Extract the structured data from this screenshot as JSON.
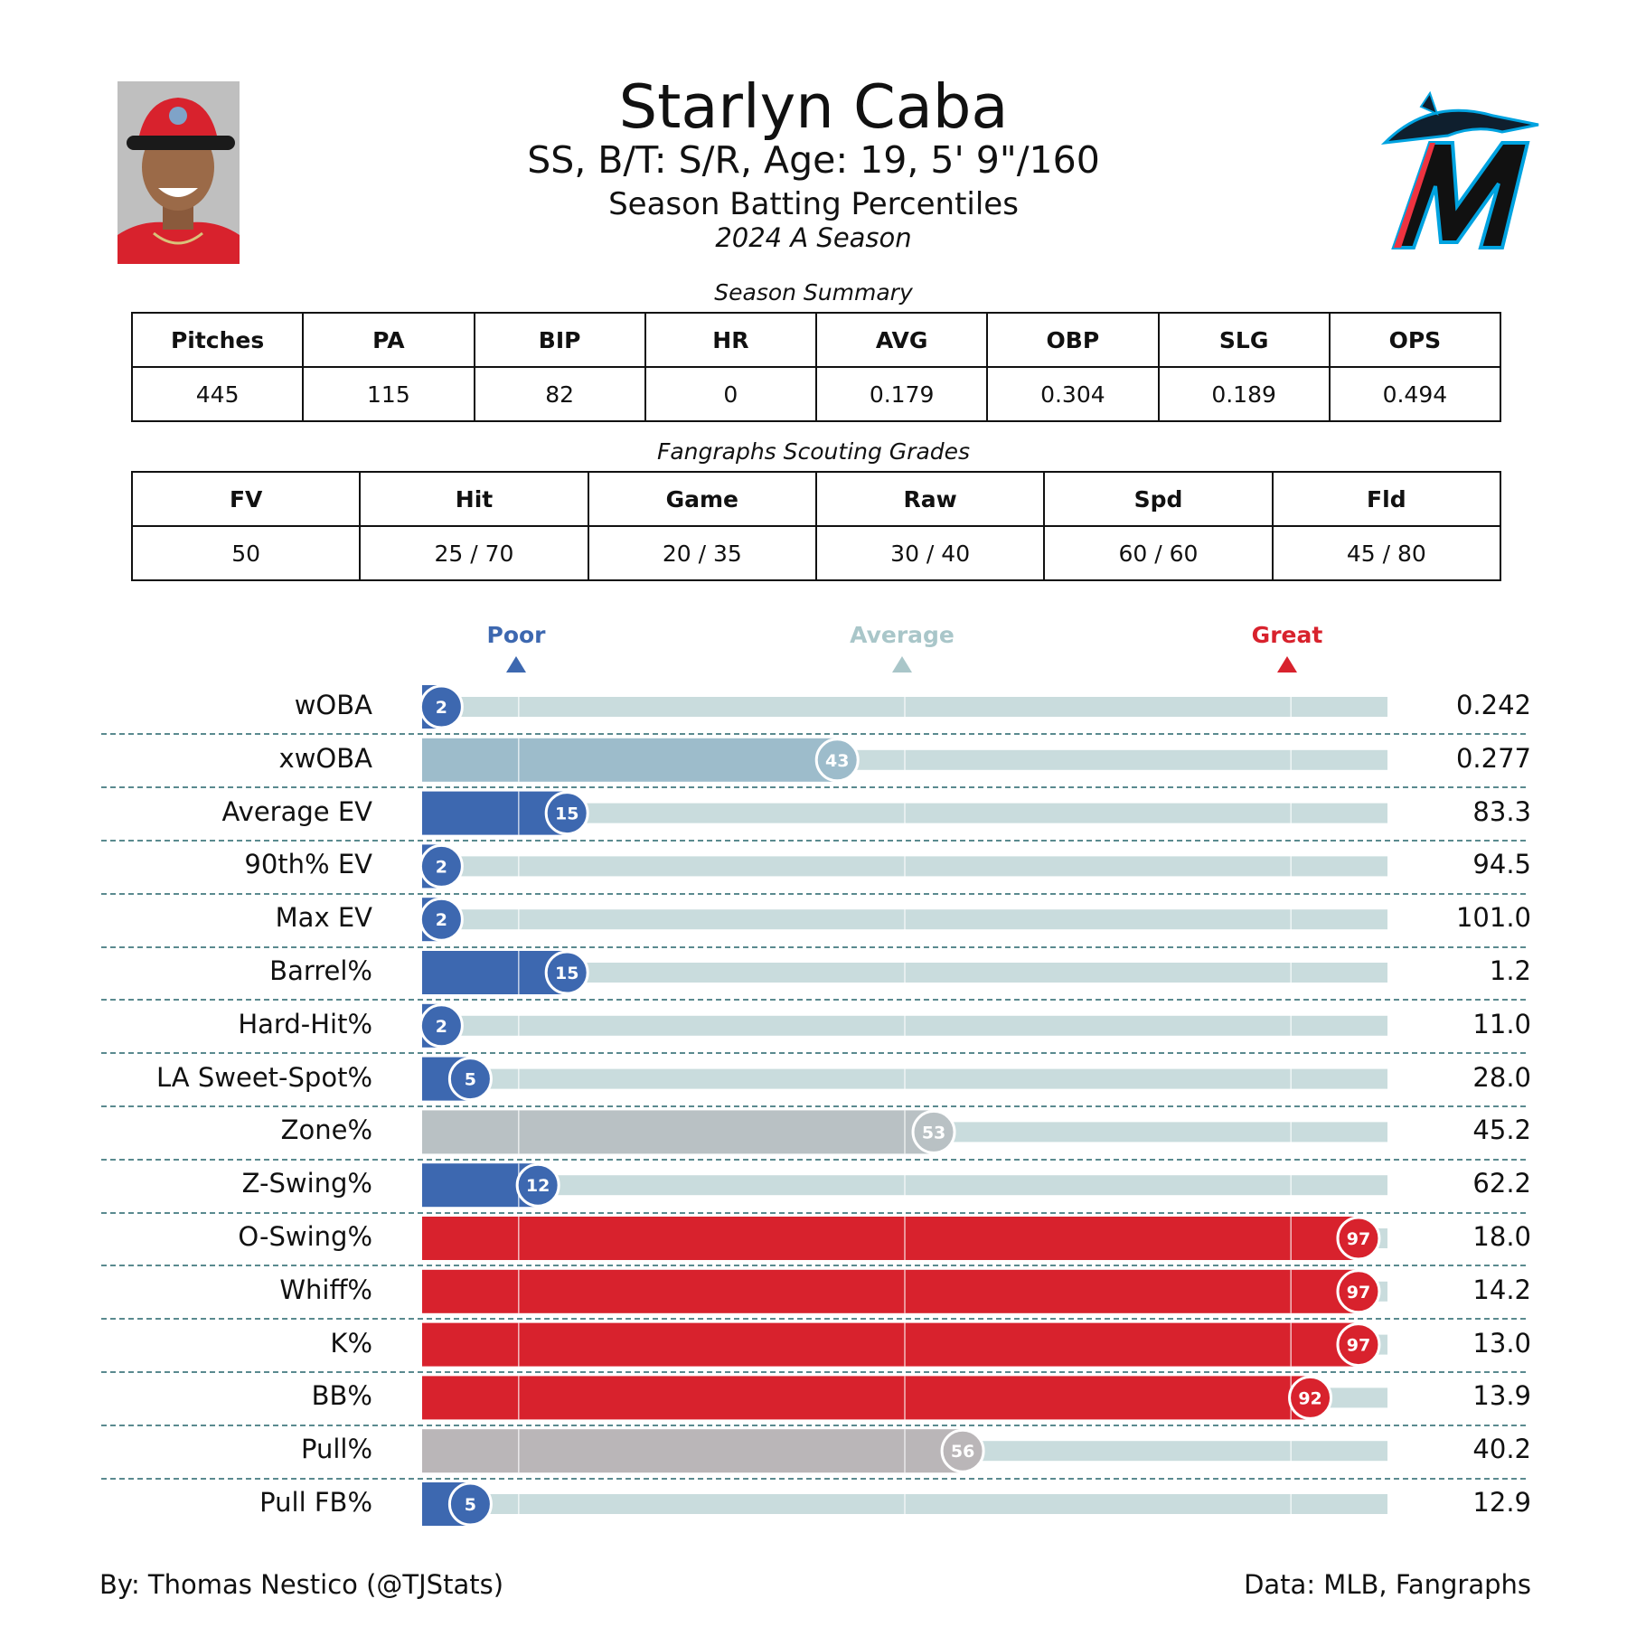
{
  "header": {
    "name": "Starlyn Caba",
    "player_line": "SS, B/T: S/R, Age: 19, 5' 9\"/160",
    "report_title": "Season Batting Percentiles",
    "season": "2024 A Season"
  },
  "summary": {
    "caption": "Season Summary",
    "columns": [
      "Pitches",
      "PA",
      "BIP",
      "HR",
      "AVG",
      "OBP",
      "SLG",
      "OPS"
    ],
    "values": [
      "445",
      "115",
      "82",
      "0",
      "0.179",
      "0.304",
      "0.189",
      "0.494"
    ]
  },
  "grades": {
    "caption": "Fangraphs Scouting Grades",
    "columns": [
      "FV",
      "Hit",
      "Game",
      "Raw",
      "Spd",
      "Fld"
    ],
    "values": [
      "50",
      "25 / 70",
      "20 / 35",
      "30 / 40",
      "60 / 60",
      "45 / 80"
    ]
  },
  "scale": {
    "poor": "Poor",
    "average": "Average",
    "great": "Great",
    "poor_color": "#3d68b0",
    "average_color": "#a9c6c9",
    "great_color": "#d8222d"
  },
  "chart_data": {
    "type": "bar",
    "orientation": "horizontal",
    "xlim": [
      0,
      100
    ],
    "reference_percentiles": [
      10,
      50,
      90
    ],
    "categories": [
      "wOBA",
      "xwOBA",
      "Average EV",
      "90th% EV",
      "Max EV",
      "Barrel%",
      "Hard-Hit%",
      "LA Sweet-Spot%",
      "Zone%",
      "Z-Swing%",
      "O-Swing%",
      "Whiff%",
      "K%",
      "BB%",
      "Pull%",
      "Pull FB%"
    ],
    "percentiles": [
      2,
      43,
      15,
      2,
      2,
      15,
      2,
      5,
      53,
      12,
      97,
      97,
      97,
      92,
      56,
      5
    ],
    "stat_values": [
      "0.242",
      "0.277",
      "83.3",
      "94.5",
      "101.0",
      "1.2",
      "11.0",
      "28.0",
      "45.2",
      "62.2",
      "18.0",
      "14.2",
      "13.0",
      "13.9",
      "40.2",
      "12.9"
    ],
    "bar_colors": [
      "#3d68b0",
      "#9dbccb",
      "#3d68b0",
      "#3d68b0",
      "#3d68b0",
      "#3d68b0",
      "#3d68b0",
      "#3d68b0",
      "#b9c1c4",
      "#3d68b0",
      "#d8222d",
      "#d8222d",
      "#d8222d",
      "#d8222d",
      "#bab6b8",
      "#3d68b0"
    ],
    "track_color": "#c9dcdd"
  },
  "footer": {
    "credit": "By: Thomas Nestico (@TJStats)",
    "source": "Data: MLB, Fangraphs"
  }
}
